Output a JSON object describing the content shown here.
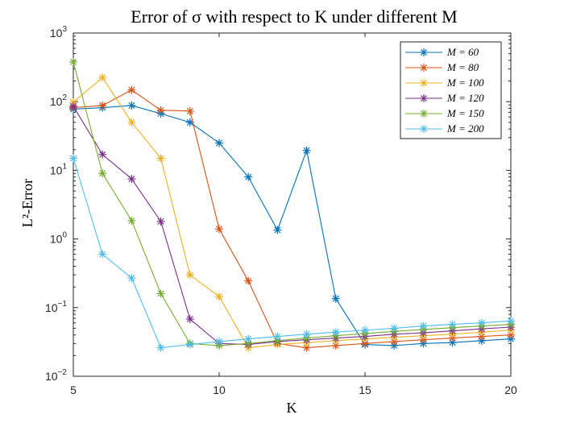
{
  "chart_data": {
    "type": "line",
    "title": "Error of σ with respect to K under different M",
    "xlabel": "K",
    "ylabel": "L²-Error",
    "xlim": [
      5,
      20
    ],
    "ylim": [
      0.01,
      1000
    ],
    "yscale": "log",
    "xticks": [
      "5",
      "10",
      "15",
      "20"
    ],
    "yticks": [
      "10^-2",
      "10^-1",
      "10^0",
      "10^1",
      "10^2",
      "10^3"
    ],
    "x": [
      5,
      6,
      7,
      8,
      9,
      10,
      11,
      12,
      13,
      14,
      15,
      16,
      17,
      18,
      19,
      20
    ],
    "legend_position": "top-right",
    "marker": "asterisk",
    "series": [
      {
        "name": "M = 60",
        "color": "#0072BD",
        "values": [
          78,
          82,
          88,
          67,
          50,
          25,
          8,
          1.35,
          19.5,
          0.135,
          0.029,
          0.028,
          0.03,
          0.031,
          0.033,
          0.035
        ]
      },
      {
        "name": "M = 80",
        "color": "#D95319",
        "values": [
          82,
          88,
          148,
          75,
          73,
          1.4,
          0.245,
          0.03,
          0.026,
          0.028,
          0.03,
          0.032,
          0.034,
          0.036,
          0.038,
          0.04
        ]
      },
      {
        "name": "M = 100",
        "color": "#EDB120",
        "values": [
          98,
          225,
          50,
          15,
          0.3,
          0.145,
          0.026,
          0.029,
          0.031,
          0.033,
          0.035,
          0.037,
          0.039,
          0.041,
          0.044,
          0.047
        ]
      },
      {
        "name": "M = 120",
        "color": "#7E2F8E",
        "values": [
          86,
          17,
          7.5,
          1.8,
          0.068,
          0.03,
          0.029,
          0.032,
          0.034,
          0.036,
          0.038,
          0.041,
          0.043,
          0.046,
          0.049,
          0.052
        ]
      },
      {
        "name": "M = 150",
        "color": "#77AC30",
        "values": [
          380,
          9,
          1.85,
          0.16,
          0.03,
          0.028,
          0.03,
          0.033,
          0.036,
          0.039,
          0.042,
          0.045,
          0.048,
          0.051,
          0.054,
          0.057
        ]
      },
      {
        "name": "M = 200",
        "color": "#4DBEEE",
        "values": [
          15,
          0.6,
          0.27,
          0.026,
          0.029,
          0.032,
          0.035,
          0.038,
          0.041,
          0.044,
          0.047,
          0.05,
          0.054,
          0.057,
          0.06,
          0.064
        ]
      }
    ]
  }
}
